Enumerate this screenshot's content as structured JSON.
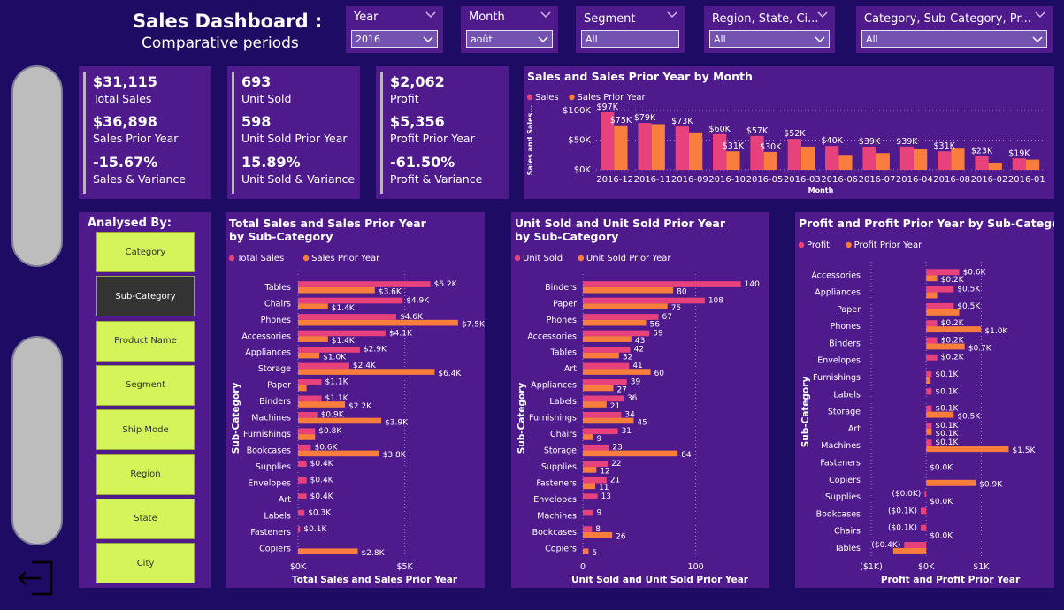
{
  "header": {
    "title": "Sales Dashboard :",
    "subtitle": "Comparative periods"
  },
  "slicers": [
    {
      "label": "Year",
      "value": "2016"
    },
    {
      "label": "Month",
      "value": "août"
    },
    {
      "label": "Segment",
      "value": "All"
    },
    {
      "label": "Region, State, Ci...",
      "value": "All"
    },
    {
      "label": "Category, Sub-Category, Pr...",
      "value": "All"
    }
  ],
  "kpis": [
    {
      "v1": "$31,115",
      "l1": "Total Sales",
      "v2": "$36,898",
      "l2": "Sales Prior Year",
      "v3": "-15.67%",
      "l3": "Sales & Variance"
    },
    {
      "v1": "693",
      "l1": "Unit Sold",
      "v2": "598",
      "l2": "Unit Sold Prior Year",
      "v3": "15.89%",
      "l3": "Unit Sold & Variance"
    },
    {
      "v1": "$2,062",
      "l1": "Profit",
      "v2": "$5,356",
      "l2": "Profit Prior Year",
      "v3": "-61.50%",
      "l3": "Profit & Variance"
    }
  ],
  "analysed": {
    "title": "Analysed By:",
    "buttons": [
      "Category",
      "Sub-Category",
      "Product Name",
      "Segment",
      "Ship Mode",
      "Region",
      "State",
      "City"
    ],
    "selected": 1
  },
  "colors": {
    "current": "#e8427c",
    "prior": "#f97d3c",
    "panel": "#4e1a8c",
    "background": "#1e0b63"
  },
  "icons": {
    "exit": "exit-icon"
  },
  "chart_data": [
    {
      "id": "month",
      "type": "bar",
      "title": "Sales and Sales Prior Year by Month",
      "xlabel": "Month",
      "ylabel": "Sales and Sales...",
      "legend": [
        "Sales",
        "Sales Prior Year"
      ],
      "legend_position": "top-left",
      "categories": [
        "2016-12",
        "2016-11",
        "2016-09",
        "2016-10",
        "2016-05",
        "2016-03",
        "2016-06",
        "2016-07",
        "2016-04",
        "2016-08",
        "2016-02",
        "2016-01"
      ],
      "series": [
        {
          "name": "Sales",
          "values": [
            97,
            79,
            73,
            60,
            57,
            52,
            40,
            39,
            39,
            31,
            23,
            19
          ],
          "labels": [
            "$97K",
            "$79K",
            "$73K",
            "$60K",
            "$57K",
            "$52K",
            "$40K",
            "$39K",
            "$39K",
            "$31K",
            "$23K",
            "$19K"
          ]
        },
        {
          "name": "Sales Prior Year",
          "values": [
            75,
            77,
            63,
            31,
            30,
            39,
            25,
            28,
            35,
            37,
            12,
            17
          ],
          "labels": [
            "$75K",
            "",
            "",
            "$31K",
            "$30K",
            "",
            "",
            "",
            "",
            "",
            "",
            ""
          ]
        }
      ],
      "ylim": [
        0,
        100
      ],
      "yticks": [
        {
          "v": 0,
          "t": "$0K"
        },
        {
          "v": 50,
          "t": "$50K"
        },
        {
          "v": 100,
          "t": "$100K"
        }
      ]
    },
    {
      "id": "sales_sub",
      "type": "bar",
      "orientation": "horizontal",
      "title": "Total Sales and Sales Prior Year by Sub-Category",
      "xlabel": "Total Sales and Sales Prior Year",
      "ylabel": "Sub-Category",
      "legend": [
        "Total Sales",
        "Sales Prior Year"
      ],
      "legend_position": "top-left",
      "categories": [
        "Tables",
        "Chairs",
        "Phones",
        "Accessories",
        "Appliances",
        "Storage",
        "Paper",
        "Binders",
        "Machines",
        "Furnishings",
        "Bookcases",
        "Supplies",
        "Envelopes",
        "Art",
        "Labels",
        "Fasteners",
        "Copiers"
      ],
      "series": [
        {
          "name": "Total Sales",
          "values": [
            6.2,
            4.9,
            4.6,
            4.1,
            2.9,
            2.4,
            1.1,
            1.1,
            0.9,
            0.8,
            0.6,
            0.4,
            0.4,
            0.4,
            0.3,
            0.1,
            0
          ],
          "labels": [
            "$6.2K",
            "$4.9K",
            "$4.6K",
            "$4.1K",
            "$2.9K",
            "$2.4K",
            "$1.1K",
            "$1.1K",
            "$0.9K",
            "$0.8K",
            "$0.6K",
            "$0.4K",
            "$0.4K",
            "$0.4K",
            "$0.3K",
            "$0.1K",
            ""
          ]
        },
        {
          "name": "Sales Prior Year",
          "values": [
            3.6,
            1.4,
            7.5,
            1.4,
            1.0,
            6.4,
            0.4,
            2.2,
            3.9,
            0.8,
            3.8,
            0,
            0,
            0,
            0,
            0,
            2.8
          ],
          "labels": [
            "$3.6K",
            "$1.4K",
            "$7.5K",
            "$1.4K",
            "$1.0K",
            "$6.4K",
            "",
            "$2.2K",
            "$3.9K",
            "",
            "$3.8K",
            "",
            "",
            "",
            "",
            "",
            "$2.8K"
          ]
        }
      ],
      "xlim": [
        0,
        8
      ],
      "xticks": [
        {
          "v": 0,
          "t": "$0K"
        },
        {
          "v": 5,
          "t": "$5K"
        }
      ]
    },
    {
      "id": "units_sub",
      "type": "bar",
      "orientation": "horizontal",
      "title": "Unit Sold and Unit Sold Prior Year by Sub-Category",
      "xlabel": "Unit Sold and Unit Sold Prior Year",
      "ylabel": "Sub-Category",
      "legend": [
        "Unit Sold",
        "Unit Sold Prior Year"
      ],
      "legend_position": "top-left",
      "categories": [
        "Binders",
        "Paper",
        "Phones",
        "Accessories",
        "Tables",
        "Art",
        "Appliances",
        "Labels",
        "Furnishings",
        "Chairs",
        "Storage",
        "Supplies",
        "Fasteners",
        "Envelopes",
        "Machines",
        "Bookcases",
        "Copiers"
      ],
      "series": [
        {
          "name": "Unit Sold",
          "values": [
            140,
            108,
            67,
            59,
            42,
            41,
            39,
            36,
            34,
            31,
            23,
            22,
            21,
            13,
            9,
            8,
            0
          ],
          "labels": [
            "140",
            "108",
            "67",
            "59",
            "42",
            "41",
            "39",
            "36",
            "34",
            "31",
            "23",
            "22",
            "21",
            "13",
            "9",
            "8",
            ""
          ]
        },
        {
          "name": "Unit Sold Prior Year",
          "values": [
            80,
            75,
            56,
            43,
            32,
            60,
            27,
            21,
            45,
            9,
            84,
            12,
            11,
            0,
            0,
            26,
            5
          ],
          "labels": [
            "80",
            "75",
            "56",
            "43",
            "32",
            "60",
            "27",
            "21",
            "45",
            "9",
            "84",
            "12",
            "11",
            "",
            "",
            "26",
            "5"
          ]
        }
      ],
      "xlim": [
        0,
        152
      ],
      "xticks": [
        {
          "v": 0,
          "t": "0"
        },
        {
          "v": 100,
          "t": "100"
        }
      ]
    },
    {
      "id": "profit_sub",
      "type": "bar",
      "orientation": "horizontal",
      "title": "Profit and Profit Prior Year by Sub-Category",
      "xlabel": "Profit and Profit Prior Year",
      "ylabel": "Sub-Category",
      "legend": [
        "Profit",
        "Profit Prior Year"
      ],
      "legend_position": "top-left",
      "categories": [
        "Accessories",
        "Appliances",
        "Paper",
        "Phones",
        "Binders",
        "Envelopes",
        "Furnishings",
        "Labels",
        "Storage",
        "Art",
        "Machines",
        "Fasteners",
        "Copiers",
        "Supplies",
        "Bookcases",
        "Chairs",
        "Tables"
      ],
      "series": [
        {
          "name": "Profit",
          "values": [
            0.6,
            0.5,
            0.5,
            0.2,
            0.2,
            0.2,
            0.1,
            0.1,
            0.1,
            0.1,
            0.1,
            0,
            0,
            -0.03,
            -0.1,
            -0.1,
            -0.4
          ],
          "labels": [
            "$0.6K",
            "$0.5K",
            "$0.5K",
            "$0.2K",
            "$0.2K",
            "$0.2K",
            "$0.1K",
            "$0.1K",
            "$0.1K",
            "$0.1K",
            "$0.1K",
            "",
            "",
            "($0.0K)",
            "($0.1K)",
            "($0.1K)",
            "($0.4K)"
          ]
        },
        {
          "name": "Profit Prior Year",
          "values": [
            0.2,
            0.2,
            0.6,
            1.0,
            0.7,
            0,
            0.08,
            0,
            0.5,
            0.1,
            1.5,
            0,
            0.9,
            0,
            0,
            0,
            -0.6
          ],
          "labels": [
            "$0.2K",
            "",
            "",
            "$1.0K",
            "$0.7K",
            "",
            "",
            "",
            "$0.5K",
            "$0.1K",
            "$1.5K",
            "$0.0K",
            "$0.9K",
            "$0.0K",
            "",
            "$0.0K",
            ""
          ]
        }
      ],
      "xlim": [
        -1,
        2.2
      ],
      "xticks": [
        {
          "v": -1,
          "t": "($1K)"
        },
        {
          "v": 0,
          "t": "$0K"
        },
        {
          "v": 1,
          "t": "$1K"
        }
      ]
    }
  ]
}
